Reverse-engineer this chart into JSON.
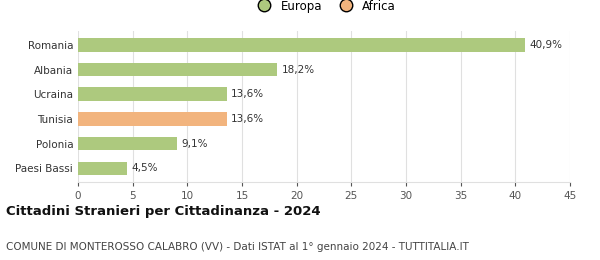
{
  "categories": [
    "Paesi Bassi",
    "Polonia",
    "Tunisia",
    "Ucraina",
    "Albania",
    "Romania"
  ],
  "values": [
    4.5,
    9.1,
    13.6,
    13.6,
    18.2,
    40.9
  ],
  "labels": [
    "4,5%",
    "9,1%",
    "13,6%",
    "13,6%",
    "18,2%",
    "40,9%"
  ],
  "bar_colors": [
    "#adc97e",
    "#adc97e",
    "#f2b47e",
    "#adc97e",
    "#adc97e",
    "#adc97e"
  ],
  "legend_items": [
    {
      "label": "Europa",
      "color": "#adc97e"
    },
    {
      "label": "Africa",
      "color": "#f2b47e"
    }
  ],
  "xlim": [
    0,
    45
  ],
  "xticks": [
    0,
    5,
    10,
    15,
    20,
    25,
    30,
    35,
    40,
    45
  ],
  "title_bold": "Cittadini Stranieri per Cittadinanza - 2024",
  "subtitle": "COMUNE DI MONTEROSSO CALABRO (VV) - Dati ISTAT al 1° gennaio 2024 - TUTTITALIA.IT",
  "background_color": "#ffffff",
  "grid_color": "#e0e0e0",
  "title_fontsize": 9.5,
  "subtitle_fontsize": 7.5,
  "label_fontsize": 7.5,
  "tick_fontsize": 7.5,
  "legend_fontsize": 8.5
}
